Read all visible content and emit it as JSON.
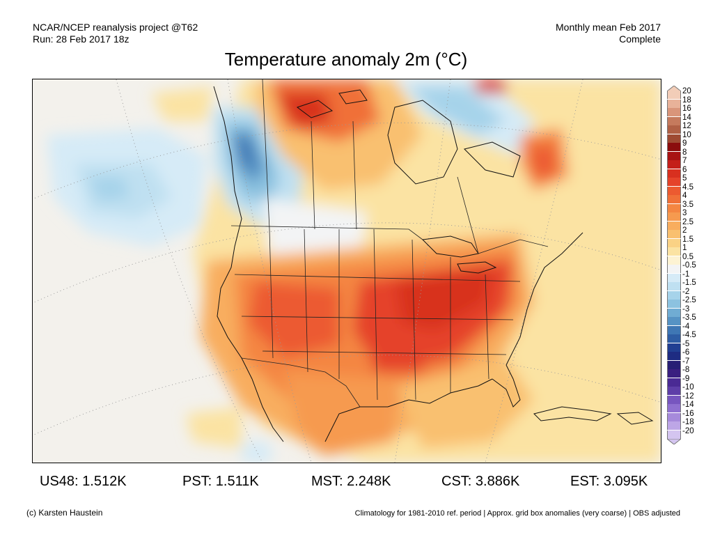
{
  "header": {
    "source_line": "NCAR/NCEP reanalysis project @T62",
    "run_line": "Run: 28 Feb 2017 18z",
    "period_line": "Monthly mean Feb 2017",
    "status_line": "Complete"
  },
  "title": "Temperature anomaly 2m (°C)",
  "legend": {
    "labels": [
      "20",
      "18",
      "16",
      "14",
      "12",
      "10",
      "9",
      "8",
      "7",
      "6",
      "5",
      "4.5",
      "4",
      "3.5",
      "3",
      "2.5",
      "2",
      "1.5",
      "1",
      "0.5",
      "-0.5",
      "-1",
      "-1.5",
      "-2",
      "-2.5",
      "-3",
      "-3.5",
      "-4",
      "-4.5",
      "-5",
      "-6",
      "-7",
      "-8",
      "-9",
      "-10",
      "-12",
      "-14",
      "-16",
      "-18",
      "-20"
    ],
    "colors": [
      "#f2cdb8",
      "#e8b299",
      "#d9957a",
      "#c57a5d",
      "#b06045",
      "#9e4a32",
      "#8b0d0d",
      "#a81212",
      "#c41f1a",
      "#d8301f",
      "#e5432a",
      "#ec5a30",
      "#f07038",
      "#f48642",
      "#f69a4f",
      "#f8ad5e",
      "#f9c06f",
      "#fad285",
      "#fbe3a3",
      "#fdf3d3",
      "#f3f4f5",
      "#d6ebf7",
      "#bfe0f1",
      "#a6d3ea",
      "#8cc2e0",
      "#70acd3",
      "#5693c4",
      "#3f77b4",
      "#2e5da4",
      "#213f92",
      "#1e2c82",
      "#271f75",
      "#3a1f80",
      "#4a2a94",
      "#5e3ea8",
      "#7756bf",
      "#8f70d0",
      "#a68adb",
      "#bda6e6",
      "#d4c5f0"
    ]
  },
  "stats": [
    {
      "label": "US48: 1.512K"
    },
    {
      "label": "PST: 1.511K"
    },
    {
      "label": "MST: 2.248K"
    },
    {
      "label": "CST: 3.886K"
    },
    {
      "label": "EST: 3.095K"
    }
  ],
  "footer": {
    "credit": "(c) Karsten Haustein",
    "note": "Climatology for 1981-2010 ref. period | Approx. grid box anomalies (very coarse) | OBS adjusted"
  }
}
